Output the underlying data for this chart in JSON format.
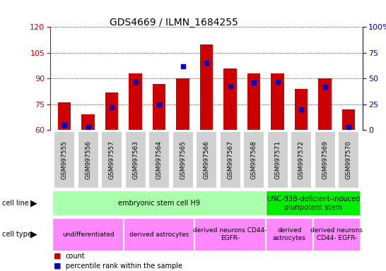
{
  "title": "GDS4669 / ILMN_1684255",
  "samples": [
    "GSM997555",
    "GSM997556",
    "GSM997557",
    "GSM997563",
    "GSM997564",
    "GSM997565",
    "GSM997566",
    "GSM997567",
    "GSM997568",
    "GSM997571",
    "GSM997572",
    "GSM997569",
    "GSM997570"
  ],
  "counts": [
    76,
    69,
    82,
    93,
    87,
    90,
    110,
    96,
    93,
    93,
    84,
    90,
    72
  ],
  "percentile_ranks": [
    5,
    3,
    22,
    47,
    25,
    62,
    65,
    43,
    46,
    47,
    20,
    42,
    3
  ],
  "ylim": [
    60,
    120
  ],
  "y2lim": [
    0,
    100
  ],
  "yticks": [
    60,
    75,
    90,
    105,
    120
  ],
  "y2ticks": [
    0,
    25,
    50,
    75,
    100
  ],
  "bar_color": "#cc0000",
  "dot_color": "#0000cc",
  "axis_color_left": "#cc0000",
  "axis_color_right": "#0000cc",
  "cell_line_groups": [
    {
      "text": "embryonic stem cell H9",
      "start": 0,
      "end": 8,
      "color": "#aaffaa"
    },
    {
      "text": "UNC-93B-deficient-induced\npluripotent stem",
      "start": 9,
      "end": 12,
      "color": "#00ee00"
    }
  ],
  "cell_type_groups": [
    {
      "text": "undifferentiated",
      "start": 0,
      "end": 2,
      "color": "#ff88ff"
    },
    {
      "text": "derived astrocytes",
      "start": 3,
      "end": 5,
      "color": "#ff88ff"
    },
    {
      "text": "derived neurons CD44-\nEGFR-",
      "start": 6,
      "end": 8,
      "color": "#ff88ff"
    },
    {
      "text": "derived\nastrocytes",
      "start": 9,
      "end": 10,
      "color": "#ff88ff"
    },
    {
      "text": "derived neurons\nCD44- EGFR-",
      "start": 11,
      "end": 12,
      "color": "#ff88ff"
    }
  ],
  "legend": [
    {
      "color": "#cc0000",
      "label": "count"
    },
    {
      "color": "#0000cc",
      "label": "percentile rank within the sample"
    }
  ]
}
